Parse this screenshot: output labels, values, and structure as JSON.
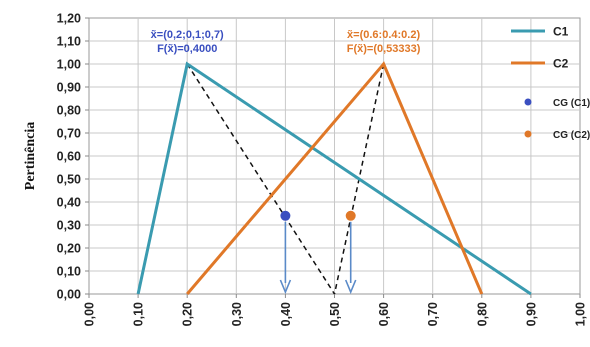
{
  "chart_data": {
    "type": "line",
    "title": "",
    "xlabel": "",
    "ylabel": "Pertinência",
    "xlim": [
      0,
      1
    ],
    "ylim": [
      0,
      1.2
    ],
    "x_ticks": [
      "0,00",
      "0,10",
      "0,20",
      "0,30",
      "0,40",
      "0,50",
      "0,60",
      "0,70",
      "0,80",
      "0,90",
      "1,00"
    ],
    "y_ticks": [
      "0,00",
      "0,10",
      "0,20",
      "0,30",
      "0,40",
      "0,50",
      "0,60",
      "0,70",
      "0,80",
      "0,90",
      "1,00",
      "1,10",
      "1,20"
    ],
    "grid": true,
    "legend_position": "right",
    "series": [
      {
        "name": "C1",
        "color": "#3a9bb0",
        "points": [
          [
            0.1,
            0
          ],
          [
            0.2,
            1
          ],
          [
            0.9,
            0
          ]
        ]
      },
      {
        "name": "C2",
        "color": "#e07828",
        "points": [
          [
            0.2,
            0
          ],
          [
            0.6,
            1
          ],
          [
            0.8,
            0
          ]
        ]
      }
    ],
    "markers": [
      {
        "name": "CG (C1)",
        "color": "#3a4fc0",
        "x": 0.4,
        "y": 0.34
      },
      {
        "name": "CG (C2)",
        "color": "#e07828",
        "x": 0.533,
        "y": 0.34
      }
    ],
    "dashed_lines": [
      {
        "color": "#111111",
        "points": [
          [
            0.2,
            1
          ],
          [
            0.5,
            0
          ]
        ]
      },
      {
        "color": "#111111",
        "points": [
          [
            0.6,
            1
          ],
          [
            0.5,
            0
          ]
        ]
      }
    ],
    "arrows": [
      {
        "color": "#5a8ac8",
        "x": 0.4,
        "from_y": 0.34,
        "to_y": 0
      },
      {
        "color": "#5a8ac8",
        "x": 0.533,
        "from_y": 0.34,
        "to_y": 0
      }
    ],
    "annotations": [
      {
        "lines": [
          "x̃=(0,2;0,1;0,7)",
          "F(x̃)=0,4000"
        ],
        "color": "#3a4fc0",
        "anchor_x": 0.2
      },
      {
        "lines": [
          "x̃=(0.6:0.4:0.2)",
          "F(x̃)=(0,53333)"
        ],
        "color": "#e07828",
        "anchor_x": 0.6
      }
    ]
  }
}
